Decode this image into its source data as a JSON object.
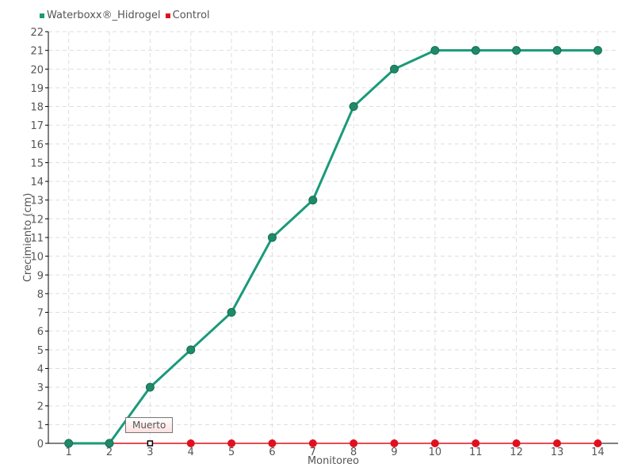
{
  "chart_data": {
    "type": "line",
    "xlabel": "Monitoreo",
    "ylabel": "Crecimiento (cm)",
    "categories": [
      "1",
      "2",
      "3",
      "4",
      "5",
      "6",
      "7",
      "8",
      "9",
      "10",
      "11",
      "12",
      "13",
      "14"
    ],
    "ylim": [
      0,
      22
    ],
    "yticks": [
      0,
      1,
      2,
      3,
      4,
      5,
      6,
      7,
      8,
      9,
      10,
      11,
      12,
      13,
      14,
      15,
      16,
      17,
      18,
      19,
      20,
      21,
      22
    ],
    "grid": true,
    "legend_position": "top-left",
    "series": [
      {
        "name": "Waterboxx®_Hidrogel",
        "color": "#1a9a7a",
        "values": [
          0,
          0,
          3,
          5,
          7,
          11,
          13,
          18,
          20,
          21,
          21,
          21,
          21,
          21
        ]
      },
      {
        "name": "Control",
        "color": "#e0101e",
        "values": [
          0,
          0,
          0,
          0,
          0,
          0,
          0,
          0,
          0,
          0,
          0,
          0,
          0,
          0
        ]
      }
    ],
    "annotations": [
      {
        "series": "Control",
        "category": "3",
        "text": "Muerto"
      }
    ]
  }
}
